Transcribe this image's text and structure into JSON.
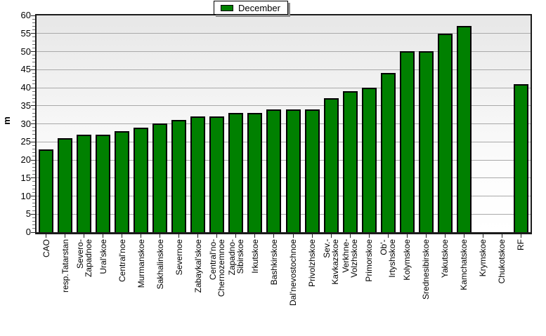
{
  "legend": {
    "label": "December",
    "swatch_color": "#008000"
  },
  "chart_data": {
    "type": "bar",
    "title": "",
    "xlabel": "",
    "ylabel": "m",
    "ylim": [
      0,
      60
    ],
    "ytick_step": 5,
    "yticks": [
      0,
      5,
      10,
      15,
      20,
      25,
      30,
      35,
      40,
      45,
      50,
      55,
      60
    ],
    "grid": true,
    "legend_position": "top-center",
    "bar_color": "#008000",
    "bar_border_color": "#000000",
    "gridline_color": "#a9a9a9",
    "categories": [
      "CAO",
      "resp.Tatarstan",
      "Severo-\nZapadnoe",
      "Ural'skoe",
      "Central'noe",
      "Murmanskoe",
      "Sakhalinskoe",
      "Severnoe",
      "Zabaykal'skoe",
      "Central'no-\nChernozemnoe",
      "Zapadno-\nSibirskoe",
      "Irkutskoe",
      "Bashkirskoe",
      "Dal'nevostochnoe",
      "Privolzhskoe",
      "Sev.-\nKavkazskoe",
      "Verkhne-\nVolzhskoe",
      "Primorskoe",
      "Ob'-\nIrtyshskoe",
      "Kolymskoe",
      "Srednesibirskoe",
      "Yakutskoe",
      "Kamchatskoe",
      "Krymskoe",
      "Chukotskoe",
      "RF"
    ],
    "series": [
      {
        "name": "December",
        "values": [
          23,
          26,
          27,
          27,
          28,
          29,
          30,
          31,
          32,
          32,
          33,
          33,
          34,
          34,
          34,
          37,
          39,
          40,
          44,
          50,
          50,
          55,
          57,
          0,
          0,
          41
        ]
      }
    ]
  }
}
